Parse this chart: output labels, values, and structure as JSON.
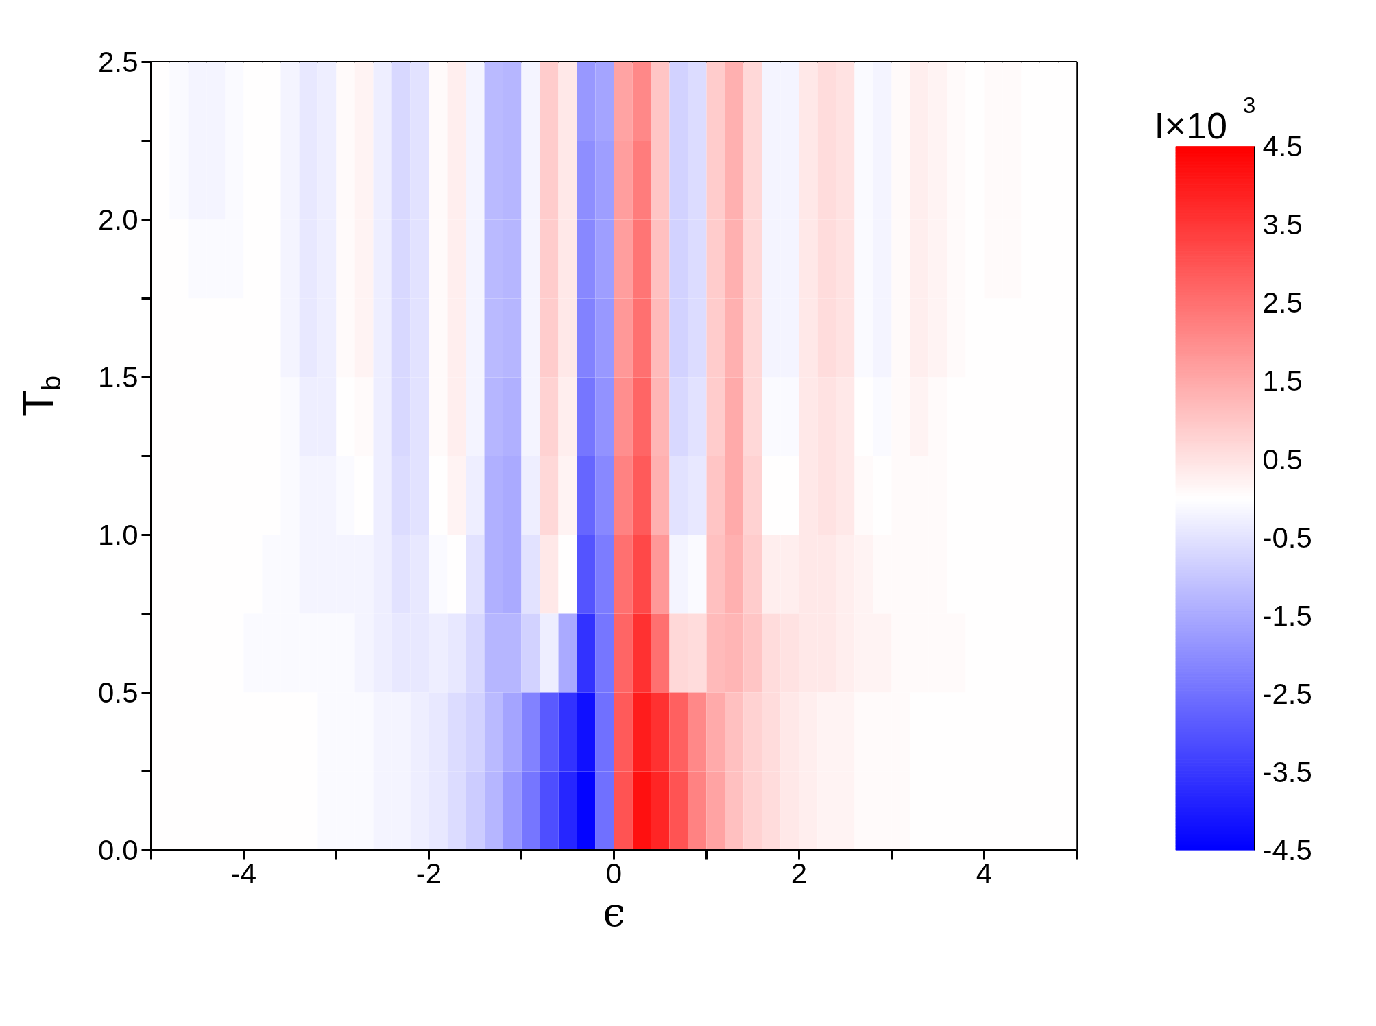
{
  "chart_data": {
    "type": "heatmap",
    "xlabel": "ϵ",
    "ylabel": "T$_{b}$",
    "clabel": "I×10$^{3}$",
    "xlim": [
      -5,
      5
    ],
    "ylim": [
      0,
      2.5
    ],
    "xticks": [
      {
        "value": -5,
        "label": null
      },
      {
        "value": -4,
        "label": "-4"
      },
      {
        "value": -3,
        "label": null
      },
      {
        "value": -2,
        "label": "-2"
      },
      {
        "value": -1,
        "label": null
      },
      {
        "value": 0,
        "label": "0"
      },
      {
        "value": 1,
        "label": null
      },
      {
        "value": 2,
        "label": "2"
      },
      {
        "value": 3,
        "label": null
      },
      {
        "value": 4,
        "label": "4"
      },
      {
        "value": 5,
        "label": null
      }
    ],
    "yticks": [
      {
        "value": 0,
        "label": "0.0"
      },
      {
        "value": 0.25,
        "label": null
      },
      {
        "value": 0.5,
        "label": "0.5"
      },
      {
        "value": 0.75,
        "label": null
      },
      {
        "value": 1,
        "label": "1.0"
      },
      {
        "value": 1.25,
        "label": null
      },
      {
        "value": 1.5,
        "label": "1.5"
      },
      {
        "value": 1.75,
        "label": null
      },
      {
        "value": 2,
        "label": "2.0"
      },
      {
        "value": 2.25,
        "label": null
      },
      {
        "value": 2.5,
        "label": "2.5"
      }
    ],
    "clim": [
      -4.5,
      4.5
    ],
    "cticks": [
      -4.5,
      -3.5,
      -2.5,
      -1.5,
      -0.5,
      0.5,
      1.5,
      2.5,
      3.5,
      4.5
    ],
    "cells": [
      [
        0,
        -0.1,
        -0.2,
        -0.2,
        -0.1,
        0,
        0,
        -0.2,
        -0.4,
        -0.3,
        0.1,
        0.2,
        -0.3,
        -0.7,
        -0.5,
        0.1,
        0.3,
        -0.2,
        -1.2,
        -1.3,
        -0.2,
        0.9,
        0.4,
        -1.8,
        -1.6,
        1.6,
        2.1,
        1.0,
        -0.8,
        -0.6,
        0.9,
        1.4,
        0.7,
        -0.2,
        -0.2,
        0.4,
        0.6,
        0.5,
        -0.1,
        -0.2,
        0.1,
        0.3,
        0.2,
        0.1,
        0,
        0.1,
        0.1,
        0,
        0,
        0
      ],
      [
        0,
        -0.1,
        -0.2,
        -0.2,
        -0.1,
        0,
        0,
        -0.2,
        -0.4,
        -0.3,
        0.1,
        0.2,
        -0.3,
        -0.7,
        -0.5,
        0.1,
        0.3,
        -0.2,
        -1.2,
        -1.3,
        -0.2,
        0.9,
        0.4,
        -2.0,
        -1.7,
        1.7,
        2.3,
        1.0,
        -0.8,
        -0.6,
        0.9,
        1.4,
        0.7,
        -0.2,
        -0.2,
        0.4,
        0.6,
        0.5,
        -0.1,
        -0.2,
        0.1,
        0.3,
        0.2,
        0.1,
        0,
        0.1,
        0.1,
        0,
        0,
        0
      ],
      [
        0,
        0,
        -0.1,
        -0.1,
        -0.1,
        0,
        0,
        -0.2,
        -0.4,
        -0.3,
        0.1,
        0.2,
        -0.3,
        -0.7,
        -0.5,
        0.1,
        0.3,
        -0.2,
        -1.2,
        -1.3,
        -0.2,
        0.9,
        0.4,
        -2.1,
        -1.7,
        1.7,
        2.4,
        1.1,
        -0.8,
        -0.6,
        0.9,
        1.4,
        0.7,
        -0.2,
        -0.2,
        0.4,
        0.6,
        0.5,
        -0.1,
        -0.2,
        0.1,
        0.3,
        0.2,
        0.1,
        0,
        0.1,
        0.1,
        0,
        0,
        0
      ],
      [
        0,
        0,
        0,
        0,
        0,
        0,
        0,
        -0.2,
        -0.4,
        -0.3,
        0.1,
        0.2,
        -0.3,
        -0.7,
        -0.5,
        0.1,
        0.3,
        -0.2,
        -1.2,
        -1.3,
        -0.2,
        0.9,
        0.4,
        -2.2,
        -1.8,
        1.8,
        2.5,
        1.2,
        -0.8,
        -0.6,
        0.9,
        1.4,
        0.7,
        -0.2,
        -0.2,
        0.4,
        0.6,
        0.5,
        -0.1,
        -0.2,
        0.1,
        0.3,
        0.2,
        0.1,
        0,
        0,
        0,
        0,
        0,
        0
      ],
      [
        0,
        0,
        0,
        0,
        0,
        0,
        0,
        -0.1,
        -0.3,
        -0.3,
        0,
        0.1,
        -0.3,
        -0.7,
        -0.5,
        0.1,
        0.3,
        -0.2,
        -1.3,
        -1.4,
        -0.2,
        0.8,
        0.3,
        -2.4,
        -1.9,
        2.0,
        2.7,
        1.3,
        -0.7,
        -0.5,
        0.9,
        1.5,
        0.7,
        -0.1,
        -0.1,
        0.4,
        0.5,
        0.4,
        0,
        -0.1,
        0.1,
        0.2,
        0.1,
        0,
        0,
        0,
        0,
        0,
        0,
        0
      ],
      [
        0,
        0,
        0,
        0,
        0,
        0,
        0,
        -0.1,
        -0.2,
        -0.2,
        -0.1,
        0,
        -0.3,
        -0.6,
        -0.5,
        0,
        0.2,
        -0.3,
        -1.4,
        -1.5,
        -0.3,
        0.7,
        0.2,
        -2.7,
        -2.1,
        2.2,
        2.9,
        1.4,
        -0.5,
        -0.4,
        1.0,
        1.5,
        0.8,
        0,
        0,
        0.4,
        0.5,
        0.4,
        0.1,
        0,
        0.1,
        0.1,
        0.1,
        0,
        0,
        0,
        0,
        0,
        0,
        0
      ],
      [
        0,
        0,
        0,
        0,
        0,
        0,
        -0.1,
        -0.1,
        -0.2,
        -0.2,
        -0.2,
        -0.2,
        -0.3,
        -0.5,
        -0.4,
        -0.1,
        0,
        -0.5,
        -1.4,
        -1.5,
        -0.5,
        0.4,
        0,
        -3.0,
        -2.3,
        2.5,
        3.2,
        1.8,
        -0.2,
        -0.1,
        1.1,
        1.4,
        0.9,
        0.3,
        0.3,
        0.4,
        0.4,
        0.3,
        0.2,
        0.1,
        0.1,
        0.1,
        0.1,
        0,
        0,
        0,
        0,
        0,
        0,
        0
      ],
      [
        0,
        0,
        0,
        0,
        0,
        -0.1,
        -0.1,
        -0.1,
        -0.1,
        -0.1,
        -0.1,
        -0.2,
        -0.3,
        -0.4,
        -0.4,
        -0.3,
        -0.4,
        -0.7,
        -1.3,
        -1.3,
        -0.8,
        -0.3,
        -1.5,
        -3.6,
        -2.4,
        2.7,
        3.6,
        2.5,
        0.7,
        0.6,
        1.2,
        1.3,
        1.0,
        0.6,
        0.5,
        0.4,
        0.4,
        0.3,
        0.2,
        0.2,
        0.1,
        0.1,
        0.1,
        0.1,
        0,
        0,
        0,
        0,
        0,
        0
      ],
      [
        0,
        0,
        0,
        0,
        0,
        0,
        0,
        0,
        0,
        -0.1,
        -0.1,
        -0.1,
        -0.2,
        -0.2,
        -0.3,
        -0.4,
        -0.6,
        -0.8,
        -1.2,
        -1.6,
        -2.2,
        -2.9,
        -3.6,
        -4.2,
        -2.5,
        2.9,
        4.0,
        3.6,
        2.8,
        2.1,
        1.5,
        1.1,
        0.8,
        0.6,
        0.4,
        0.3,
        0.2,
        0.2,
        0.1,
        0.1,
        0.1,
        0,
        0,
        0,
        0,
        0,
        0,
        0,
        0,
        0
      ],
      [
        0,
        0,
        0,
        0,
        0,
        0,
        0,
        0,
        0,
        -0.1,
        -0.1,
        -0.1,
        -0.2,
        -0.2,
        -0.3,
        -0.4,
        -0.6,
        -0.9,
        -1.3,
        -1.8,
        -2.4,
        -3.1,
        -3.8,
        -4.4,
        -2.5,
        3.0,
        4.2,
        3.8,
        3.0,
        2.2,
        1.6,
        1.1,
        0.8,
        0.6,
        0.4,
        0.3,
        0.2,
        0.2,
        0.1,
        0.1,
        0.1,
        0,
        0,
        0,
        0,
        0,
        0,
        0,
        0,
        0
      ]
    ]
  }
}
